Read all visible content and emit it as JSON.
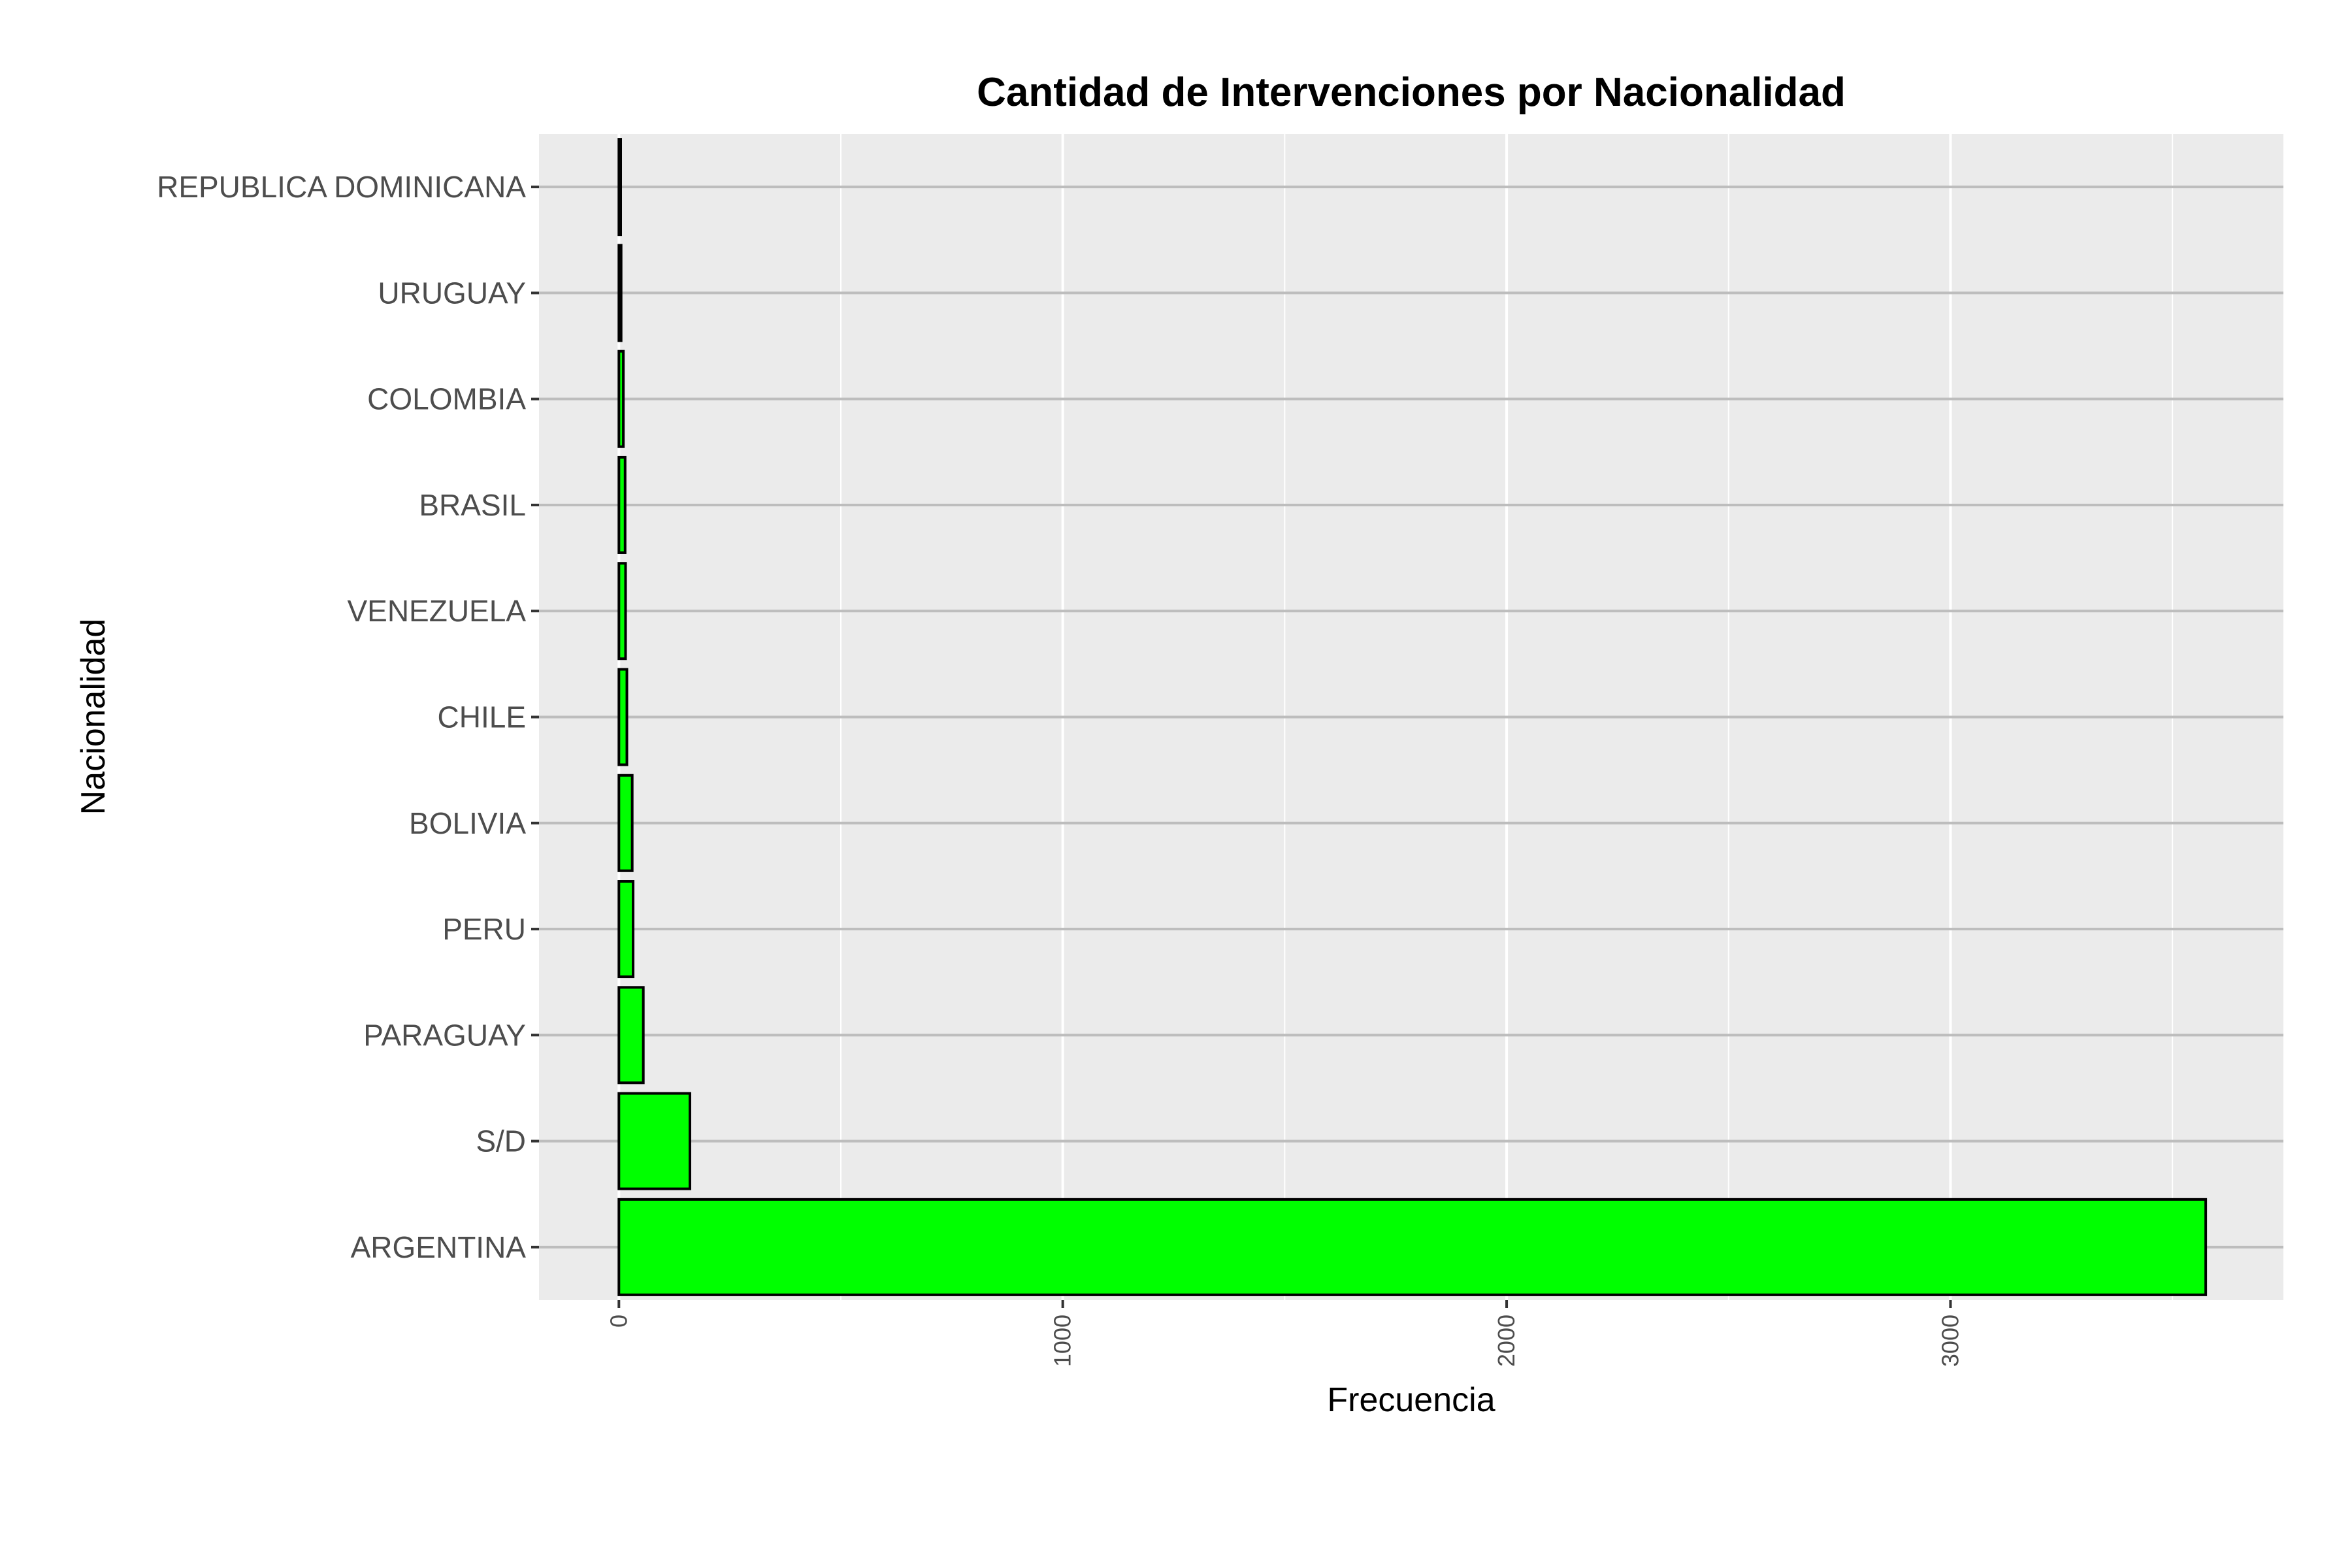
{
  "chart_data": {
    "type": "bar",
    "orientation": "horizontal",
    "title": "Cantidad de Intervenciones por Nacionalidad",
    "xlabel": "Frecuencia",
    "ylabel": "Nacionalidad",
    "categories": [
      "ARGENTINA",
      "S/D",
      "PARAGUAY",
      "PERU",
      "BOLIVIA",
      "CHILE",
      "VENEZUELA",
      "BRASIL",
      "COLOMBIA",
      "URUGUAY",
      "REPUBLICA DOMINICANA"
    ],
    "values": [
      3575,
      160,
      55,
      32,
      30,
      18,
      15,
      14,
      10,
      5,
      4
    ],
    "xlim": [
      -180,
      3750
    ],
    "xticks": [
      0,
      1000,
      2000,
      3000
    ],
    "xtick_labels": [
      "0",
      "1000",
      "2000",
      "3000"
    ],
    "grid": true,
    "colors": {
      "bar_fill": "#00ff00",
      "bar_stroke": "#000000",
      "panel_bg": "#ebebeb",
      "grid": "#ffffff",
      "category_line": "#bdbdbd"
    }
  }
}
